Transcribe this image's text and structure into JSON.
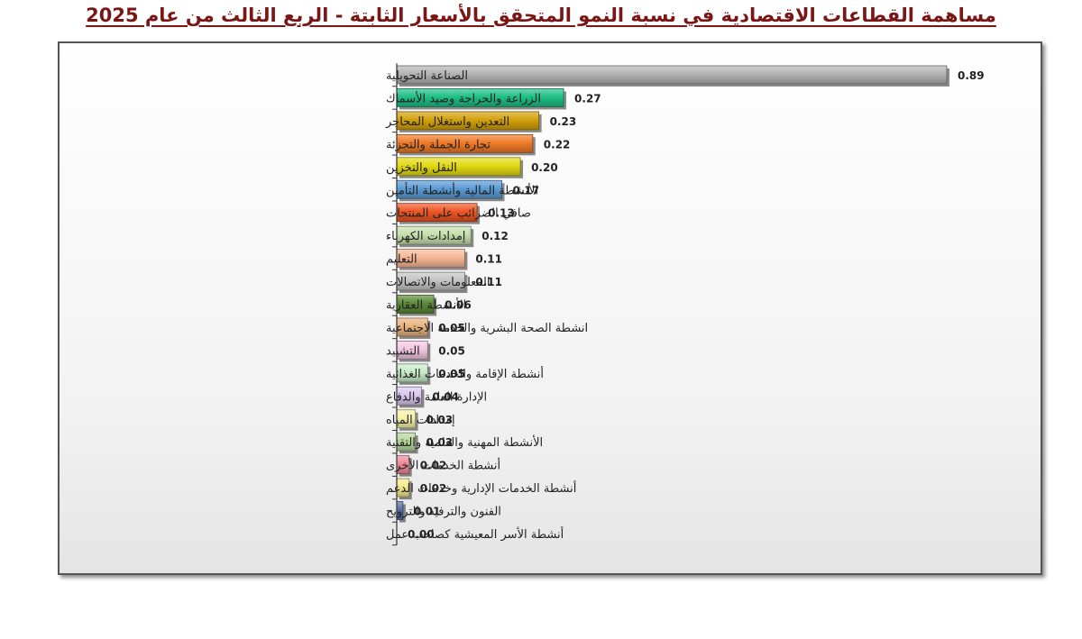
{
  "chart_data": {
    "type": "bar",
    "orientation": "horizontal",
    "title": "مساهمة القطاعات الاقتصادية في نسبة النمو المتحقق بالأسعار الثابتة - الربع الثالث من عام 2025",
    "xlim": [
      0,
      0.89
    ],
    "grid": false,
    "categories": [
      "الصناعة التحويلية",
      "الزراعة والحراجة وصيد الأسماك",
      "التعدين واستغلال المحاجر",
      "تجارة الجملة والتجزئة",
      "النقل والتخزين",
      "الأنشطة المالية وأنشطة التأمين",
      "صافي الضرائب على المنتجات",
      "إمدادات الكهرباء",
      "التعليم",
      "المعلومات والاتصالات",
      "الأنشطة العقارية",
      "انشطة الصحة البشرية والخدمة الاجتماعية",
      "التشييد",
      "أنشطة الإقامة والخدمات الغذائية",
      "الإدارة العامة والدفاع",
      "إمدادات المياه",
      "الأنشطة المهنية والعلمية والتقنية",
      "أنشطة الخدمات الأخرى",
      "أنشطة الخدمات الإدارية وخدمات الدعم",
      "الفنون والترفيه والترويح",
      "أنشطة الأسر المعيشية كصاحب عمل"
    ],
    "values": [
      0.89,
      0.27,
      0.23,
      0.22,
      0.2,
      0.17,
      0.13,
      0.12,
      0.11,
      0.11,
      0.06,
      0.05,
      0.05,
      0.05,
      0.04,
      0.03,
      0.03,
      0.02,
      0.02,
      0.01,
      0.0
    ],
    "value_labels": [
      "0.89",
      "0.27",
      "0.23",
      "0.22",
      "0.20",
      "0.17",
      "0.13",
      "0.12",
      "0.11",
      "0.11",
      "0.06",
      "0.05",
      "0.05",
      "0.05",
      "0.04",
      "0.03",
      "0.03",
      "0.02",
      "0.02",
      "0.01",
      "0.00"
    ],
    "colors": [
      "#b3b3b3",
      "#1fbf87",
      "#d3a10b",
      "#f07b28",
      "#e3da12",
      "#5b9bd5",
      "#ef5524",
      "#c7e0ac",
      "#f6b895",
      "#c4c4c4",
      "#5c8a38",
      "#e8b37e",
      "#f4c8e3",
      "#c8ecc8",
      "#dcc6ef",
      "#f7f1a8",
      "#b5d99b",
      "#f08a98",
      "#f5ea8a",
      "#5670a8",
      "#3c4a6a"
    ]
  }
}
